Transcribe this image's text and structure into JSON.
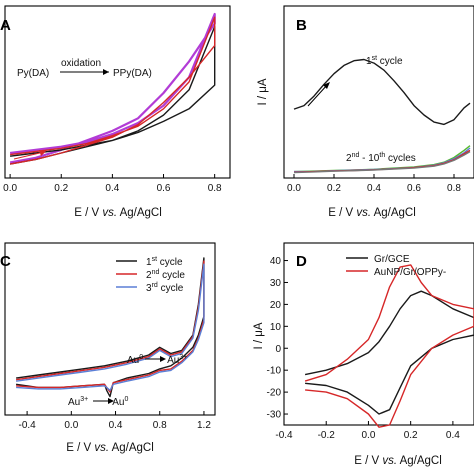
{
  "colors": {
    "black": "#1a1a1a",
    "red": "#d62728",
    "blue": "#5b7fd6",
    "purple": "#b23cd6",
    "green": "#55b82e",
    "gray": "#777777"
  },
  "chart_data": [
    {
      "panel": "A",
      "type": "line",
      "xlabel_pre": "E / V ",
      "xlabel_it": "vs.",
      "xlabel_post": " Ag/AgCl",
      "xticks": [
        "0.0",
        "0.2",
        "0.4",
        "0.6",
        "0.8"
      ],
      "xlim": [
        -0.02,
        0.86
      ],
      "annotation": {
        "left": "Py(DA)",
        "arrow": "oxidation",
        "right": "PPy(DA)"
      },
      "series": [
        {
          "color": "purple",
          "x": [
            0.0,
            0.1,
            0.2,
            0.3,
            0.4,
            0.5,
            0.6,
            0.7,
            0.8,
            0.8,
            0.7,
            0.6,
            0.5,
            0.4,
            0.3,
            0.2,
            0.1,
            0.0
          ],
          "y": [
            0.12,
            0.14,
            0.16,
            0.19,
            0.24,
            0.31,
            0.42,
            0.6,
            1.0,
            0.94,
            0.7,
            0.5,
            0.34,
            0.26,
            0.2,
            0.14,
            0.09,
            0.06
          ]
        },
        {
          "color": "black",
          "x": [
            0.0,
            0.1,
            0.2,
            0.3,
            0.4,
            0.5,
            0.6,
            0.7,
            0.8,
            0.8,
            0.7,
            0.6,
            0.5,
            0.4,
            0.3,
            0.2,
            0.1,
            0.0
          ],
          "y": [
            0.1,
            0.12,
            0.14,
            0.17,
            0.2,
            0.26,
            0.36,
            0.52,
            0.92,
            0.55,
            0.4,
            0.32,
            0.25,
            0.2,
            0.16,
            0.12,
            0.08,
            0.05
          ]
        },
        {
          "color": "red",
          "x": [
            0.0,
            0.1,
            0.2,
            0.3,
            0.4,
            0.5,
            0.6,
            0.7,
            0.8,
            0.8,
            0.7,
            0.6,
            0.5,
            0.4,
            0.3,
            0.2,
            0.1,
            0.0
          ],
          "y": [
            0.11,
            0.13,
            0.15,
            0.18,
            0.23,
            0.29,
            0.4,
            0.57,
            0.98,
            0.8,
            0.6,
            0.44,
            0.3,
            0.22,
            0.17,
            0.12,
            0.08,
            0.05
          ]
        }
      ]
    },
    {
      "panel": "B",
      "type": "line",
      "ylabel": "I / μA",
      "xlabel_pre": "E / V ",
      "xlabel_it": "vs.",
      "xlabel_post": " Ag/AgCl",
      "xticks": [
        "0.0",
        "0.2",
        "0.4",
        "0.6",
        "0.8"
      ],
      "xlim": [
        -0.05,
        0.9
      ],
      "label_first": {
        "n": "1",
        "sup": "st",
        "word": " cycle"
      },
      "label_rest": {
        "a": "2",
        "a_sup": "nd",
        "mid": " - 10",
        "b_sup": "th",
        "word": " cycles"
      },
      "series": [
        {
          "name": "1st cycle",
          "color": "black",
          "x": [
            0.0,
            0.05,
            0.1,
            0.15,
            0.2,
            0.25,
            0.3,
            0.35,
            0.4,
            0.45,
            0.5,
            0.55,
            0.6,
            0.65,
            0.7,
            0.75,
            0.8,
            0.85,
            0.88
          ],
          "y": [
            0.55,
            0.58,
            0.66,
            0.76,
            0.85,
            0.92,
            0.96,
            0.97,
            0.94,
            0.88,
            0.79,
            0.69,
            0.58,
            0.5,
            0.44,
            0.42,
            0.46,
            0.56,
            0.6
          ]
        },
        {
          "name": "2nd - 10th cycles",
          "color": "green",
          "x": [
            0.0,
            0.1,
            0.2,
            0.3,
            0.4,
            0.5,
            0.6,
            0.7,
            0.75,
            0.8,
            0.85,
            0.88
          ],
          "y": [
            0.02,
            0.025,
            0.03,
            0.035,
            0.04,
            0.05,
            0.06,
            0.08,
            0.1,
            0.14,
            0.2,
            0.24
          ]
        },
        {
          "color": "blue",
          "x": [
            0.0,
            0.1,
            0.2,
            0.3,
            0.4,
            0.5,
            0.6,
            0.7,
            0.75,
            0.8,
            0.85,
            0.88
          ],
          "y": [
            0.02,
            0.022,
            0.028,
            0.033,
            0.038,
            0.046,
            0.056,
            0.075,
            0.095,
            0.13,
            0.18,
            0.22
          ]
        },
        {
          "color": "red",
          "x": [
            0.0,
            0.1,
            0.2,
            0.3,
            0.4,
            0.5,
            0.6,
            0.7,
            0.75,
            0.8,
            0.85,
            0.88
          ],
          "y": [
            0.015,
            0.02,
            0.026,
            0.03,
            0.036,
            0.044,
            0.054,
            0.07,
            0.09,
            0.12,
            0.17,
            0.2
          ]
        },
        {
          "color": "gray",
          "x": [
            0.0,
            0.1,
            0.2,
            0.3,
            0.4,
            0.5,
            0.6,
            0.7,
            0.75,
            0.8,
            0.85,
            0.88
          ],
          "y": [
            0.012,
            0.018,
            0.024,
            0.028,
            0.034,
            0.042,
            0.05,
            0.066,
            0.085,
            0.115,
            0.16,
            0.19
          ]
        }
      ]
    },
    {
      "panel": "C",
      "type": "line",
      "xlabel_pre": "E / V ",
      "xlabel_it": "vs.",
      "xlabel_post": " Ag/AgCl",
      "xticks": [
        "-0.4",
        "0.0",
        "0.4",
        "0.8",
        "1.2"
      ],
      "xlim": [
        -0.6,
        1.3
      ],
      "legend_position": "top-right",
      "ann_ox": {
        "a": "Au",
        "a_sup": "0",
        "b": "Au",
        "b_sup": "3+"
      },
      "ann_red": {
        "a": "Au",
        "a_sup": "3+",
        "b": "Au",
        "b_sup": "0"
      },
      "series": [
        {
          "name": "1st cycle",
          "n": "1",
          "sup": "st",
          "word": " cycle",
          "color": "black",
          "x": [
            -0.5,
            -0.3,
            -0.1,
            0.1,
            0.3,
            0.5,
            0.7,
            0.8,
            0.9,
            1.0,
            1.1,
            1.15,
            1.2,
            1.2,
            1.15,
            1.1,
            1.0,
            0.9,
            0.8,
            0.7,
            0.5,
            0.38,
            0.35,
            0.32,
            0.3,
            0.1,
            -0.1,
            -0.3,
            -0.5
          ],
          "y": [
            0.22,
            0.24,
            0.26,
            0.28,
            0.3,
            0.33,
            0.37,
            0.42,
            0.38,
            0.4,
            0.5,
            0.7,
            1.0,
            0.62,
            0.5,
            0.42,
            0.35,
            0.3,
            0.28,
            0.25,
            0.22,
            0.19,
            0.1,
            0.14,
            0.18,
            0.17,
            0.16,
            0.16,
            0.18
          ]
        },
        {
          "name": "2nd cycle",
          "n": "2",
          "sup": "nd",
          "word": " cycle",
          "color": "red",
          "x": [
            -0.5,
            -0.3,
            -0.1,
            0.1,
            0.3,
            0.5,
            0.7,
            0.8,
            0.9,
            1.0,
            1.1,
            1.15,
            1.2,
            1.2,
            1.15,
            1.1,
            1.0,
            0.9,
            0.8,
            0.7,
            0.5,
            0.38,
            0.35,
            0.32,
            0.3,
            0.1,
            -0.1,
            -0.3,
            -0.5
          ],
          "y": [
            0.21,
            0.23,
            0.25,
            0.27,
            0.29,
            0.32,
            0.36,
            0.41,
            0.37,
            0.39,
            0.49,
            0.68,
            0.98,
            0.6,
            0.48,
            0.4,
            0.33,
            0.28,
            0.27,
            0.24,
            0.21,
            0.19,
            0.13,
            0.16,
            0.18,
            0.17,
            0.16,
            0.16,
            0.17
          ]
        },
        {
          "name": "3rd cycle",
          "n": "3",
          "sup": "rd",
          "word": " cycle",
          "color": "blue",
          "x": [
            -0.5,
            -0.3,
            -0.1,
            0.1,
            0.3,
            0.5,
            0.7,
            0.8,
            0.9,
            1.0,
            1.1,
            1.15,
            1.2,
            1.2,
            1.15,
            1.1,
            1.0,
            0.9,
            0.8,
            0.7,
            0.5,
            0.38,
            0.35,
            0.32,
            0.3,
            0.1,
            -0.1,
            -0.3,
            -0.5
          ],
          "y": [
            0.2,
            0.22,
            0.24,
            0.26,
            0.28,
            0.31,
            0.35,
            0.4,
            0.36,
            0.38,
            0.48,
            0.66,
            0.96,
            0.58,
            0.47,
            0.39,
            0.32,
            0.27,
            0.26,
            0.23,
            0.2,
            0.18,
            0.14,
            0.16,
            0.17,
            0.16,
            0.15,
            0.15,
            0.16
          ]
        }
      ]
    },
    {
      "panel": "D",
      "type": "line",
      "ylabel": "I / μA",
      "xlabel_pre": "E / V ",
      "xlabel_it": "vs.",
      "xlabel_post": " Ag/AgCl",
      "xticks": [
        "-0.4",
        "-0.2",
        "0.0",
        "0.2",
        "0.4"
      ],
      "yticks": [
        "40",
        "30",
        "20",
        "10",
        "0",
        "-10",
        "-20",
        "-30"
      ],
      "xlim": [
        -0.4,
        0.5
      ],
      "ylim": [
        -35,
        48
      ],
      "legend_position": "top-right",
      "series": [
        {
          "name": "Gr/GCE",
          "color": "black",
          "x": [
            -0.3,
            -0.2,
            -0.1,
            0.0,
            0.05,
            0.1,
            0.15,
            0.2,
            0.25,
            0.3,
            0.4,
            0.5,
            0.5,
            0.4,
            0.3,
            0.2,
            0.15,
            0.1,
            0.05,
            0.0,
            -0.1,
            -0.2,
            -0.3
          ],
          "y": [
            -12,
            -10,
            -7,
            -2,
            3,
            10,
            18,
            24,
            26,
            24,
            18,
            14,
            6,
            4,
            0,
            -8,
            -18,
            -28,
            -30,
            -26,
            -20,
            -17,
            -16
          ]
        },
        {
          "name": "AuNP/Gr/OPPy-",
          "color": "red",
          "x": [
            -0.3,
            -0.2,
            -0.1,
            0.0,
            0.05,
            0.1,
            0.15,
            0.2,
            0.25,
            0.3,
            0.4,
            0.5,
            0.5,
            0.4,
            0.3,
            0.2,
            0.15,
            0.1,
            0.05,
            0.0,
            -0.1,
            -0.2,
            -0.3
          ],
          "y": [
            -15,
            -12,
            -5,
            4,
            14,
            28,
            37,
            38,
            30,
            24,
            20,
            18,
            10,
            6,
            0,
            -12,
            -24,
            -35,
            -36,
            -30,
            -23,
            -20,
            -19
          ]
        }
      ]
    }
  ]
}
